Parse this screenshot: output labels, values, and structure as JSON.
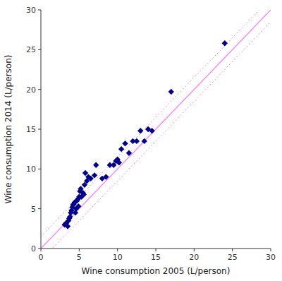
{
  "chart_data": {
    "type": "scatter",
    "xlabel": "Wine consumption 2005 (L/person)",
    "ylabel": "Wine consumption 2014 (L/person)",
    "x": [
      3.1,
      3.3,
      3.5,
      3.6,
      3.7,
      3.8,
      3.9,
      4.0,
      4.1,
      4.2,
      4.3,
      4.4,
      4.5,
      4.6,
      4.7,
      4.8,
      4.9,
      5.0,
      5.1,
      5.2,
      5.3,
      5.5,
      5.6,
      5.7,
      5.8,
      6.0,
      6.2,
      6.5,
      7.0,
      7.2,
      8.0,
      8.5,
      9.0,
      9.5,
      9.8,
      10.0,
      10.2,
      10.5,
      11.0,
      11.5,
      12.0,
      12.5,
      13.0,
      13.5,
      14.0,
      14.5,
      17.0,
      24.0
    ],
    "values": [
      3.0,
      3.2,
      2.8,
      3.5,
      3.8,
      4.0,
      4.5,
      4.8,
      5.2,
      5.5,
      5.6,
      5.8,
      4.5,
      5.0,
      6.0,
      6.2,
      5.3,
      6.5,
      7.2,
      7.5,
      6.5,
      7.0,
      6.8,
      8.0,
      9.5,
      8.5,
      9.0,
      8.8,
      9.2,
      10.5,
      8.8,
      9.0,
      10.5,
      10.5,
      11.0,
      11.2,
      10.8,
      12.5,
      13.2,
      12.0,
      13.5,
      13.5,
      14.8,
      13.5,
      15.0,
      14.8,
      19.7,
      25.8
    ],
    "color": "#00008B",
    "marker": "diamond",
    "reference_line": {
      "slope": 1.0,
      "intercept": 0.0,
      "offset": 1.5,
      "color": "#FF80FF"
    },
    "xlim": [
      0,
      30
    ],
    "ylim": [
      0,
      30
    ],
    "xticks": [
      0,
      5,
      10,
      15,
      20,
      25,
      30
    ],
    "yticks": [
      0,
      5,
      10,
      15,
      20,
      25,
      30
    ],
    "grid": false
  }
}
